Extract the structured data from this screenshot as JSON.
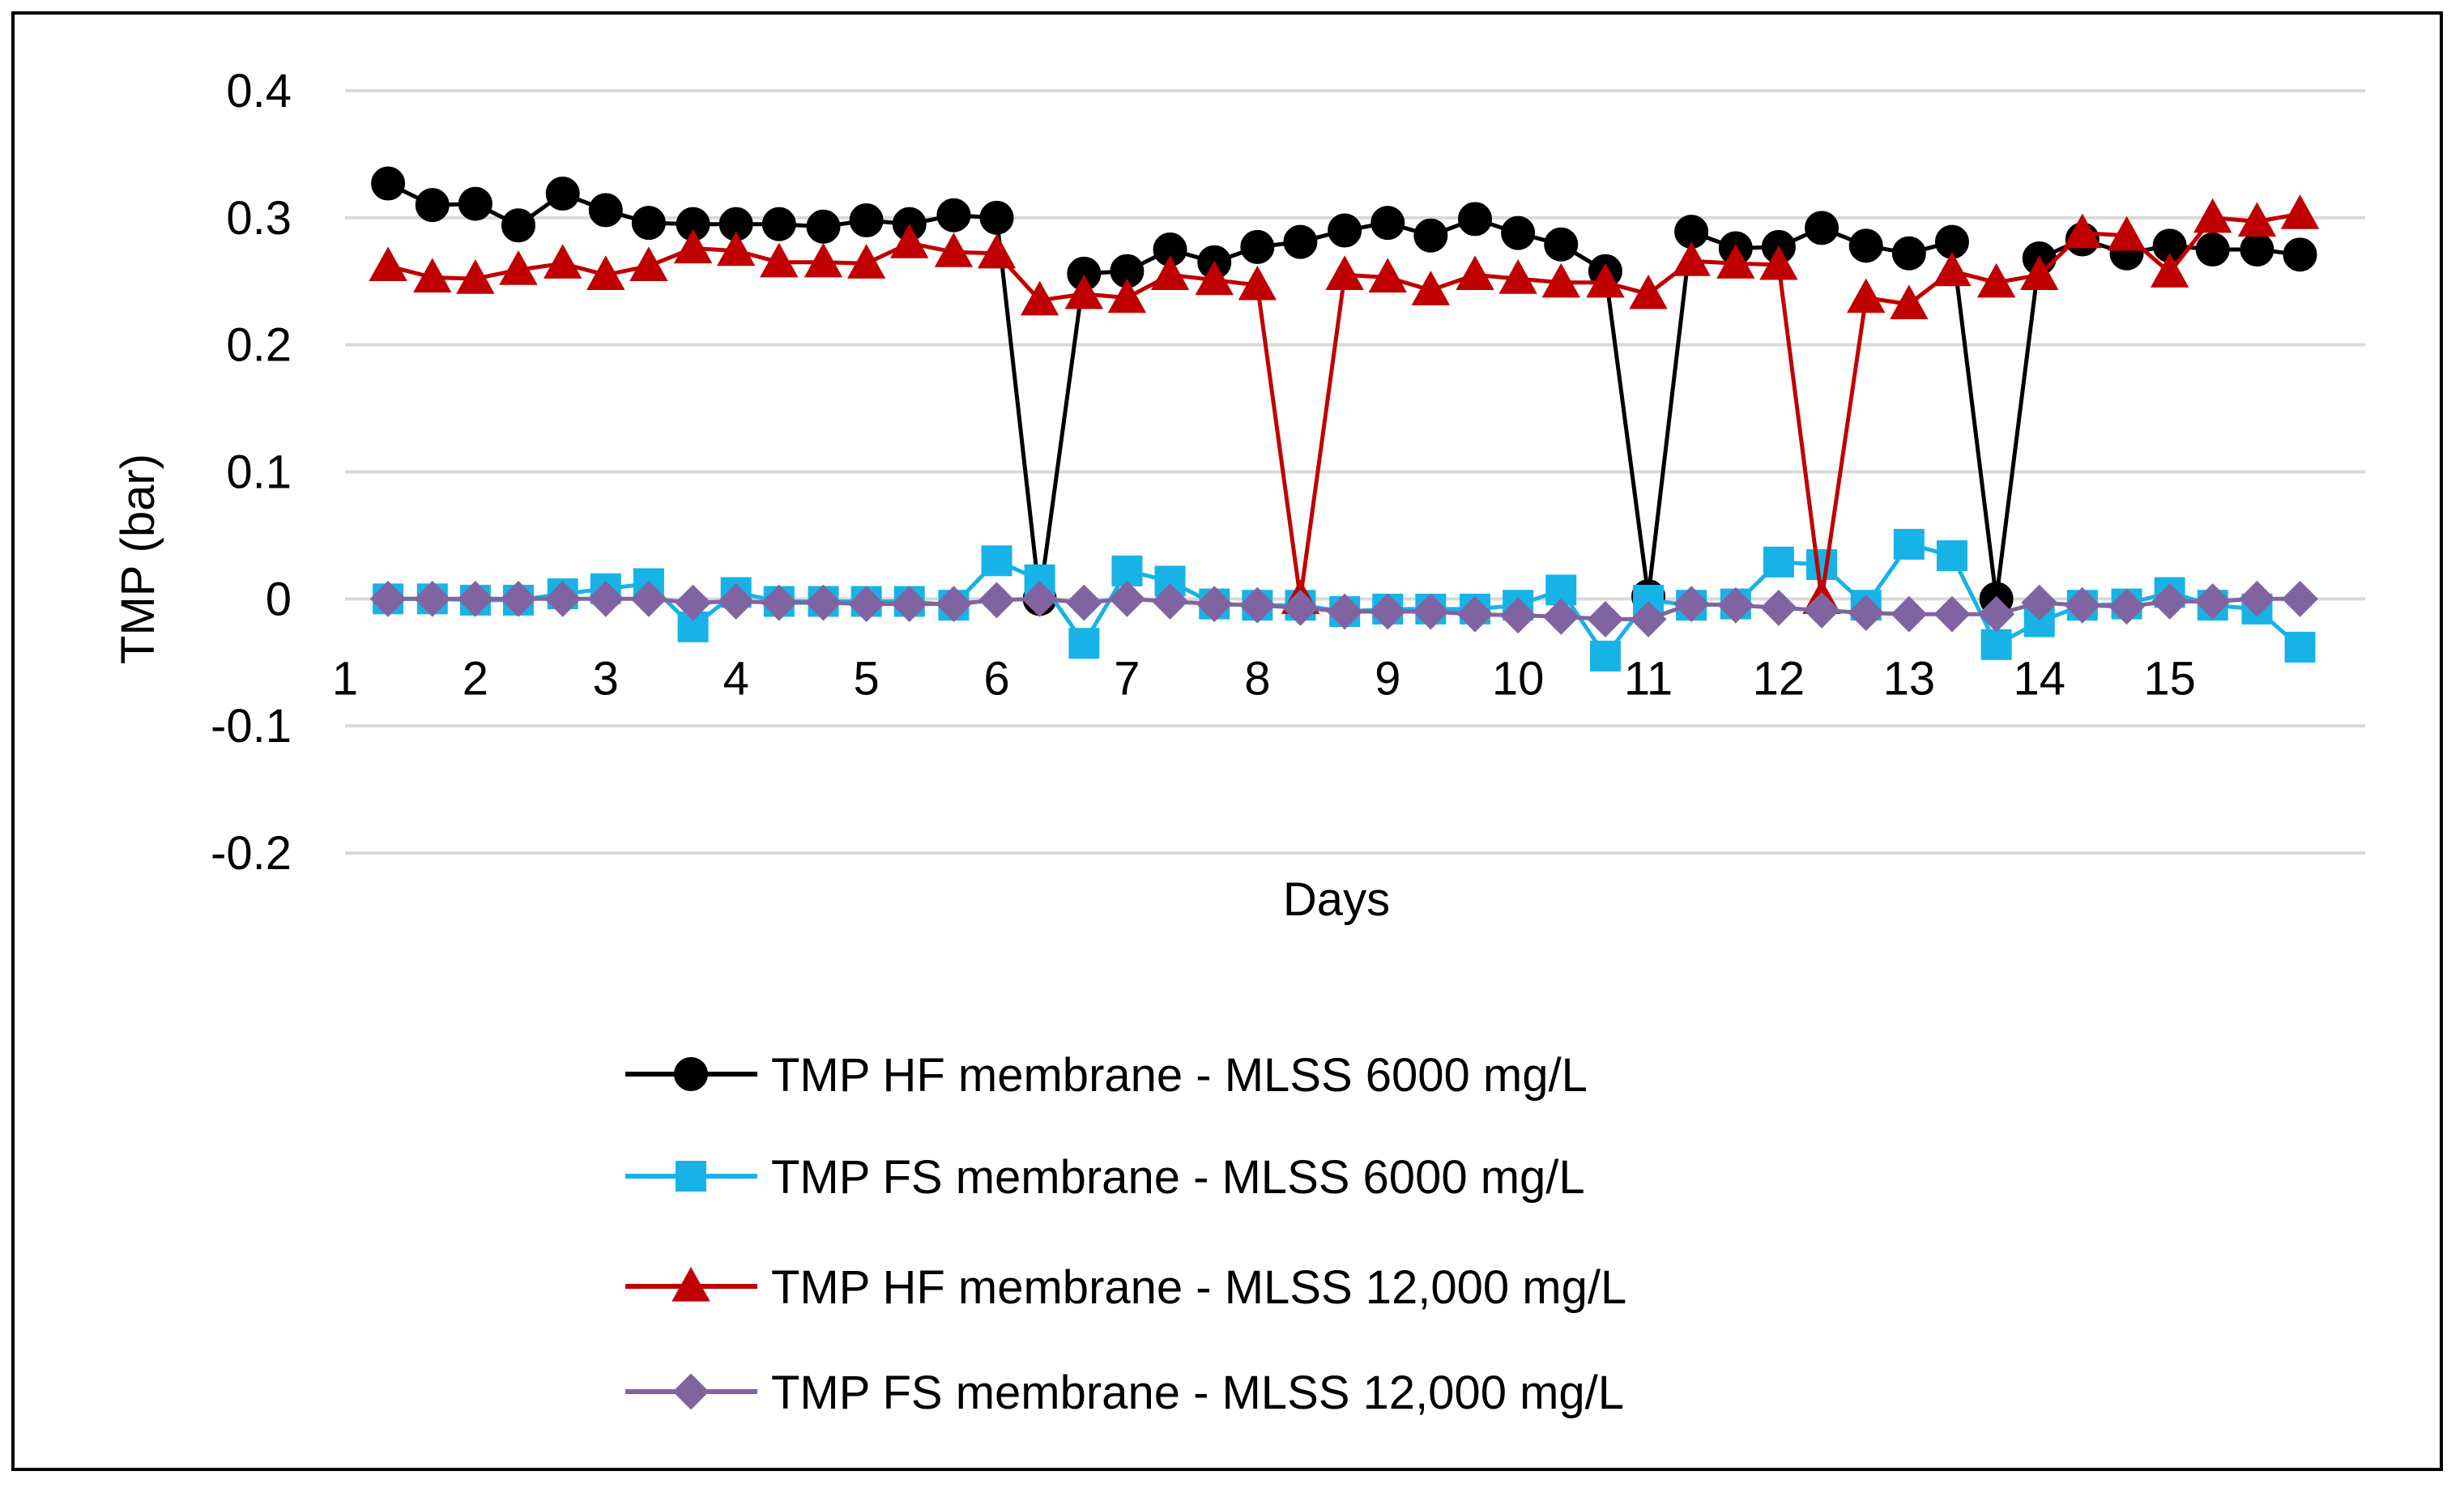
{
  "chart_data": {
    "type": "line",
    "title": "",
    "xlabel": "Days",
    "ylabel": "TMP (bar)",
    "ylim": [
      -0.2,
      0.4
    ],
    "yticks": [
      "-0.2",
      "-0.1",
      "0",
      "0.1",
      "0.2",
      "0.3",
      "0.4"
    ],
    "ytick_values": [
      -0.2,
      -0.1,
      0,
      0.1,
      0.2,
      0.3,
      0.4
    ],
    "xticks": [
      "1",
      "2",
      "3",
      "4",
      "5",
      "6",
      "7",
      "8",
      "9",
      "10",
      "11",
      "12",
      "13",
      "14",
      "15"
    ],
    "xlim": [
      1,
      16.5
    ],
    "grid": true,
    "legend_position": "bottom",
    "series": [
      {
        "name": "TMP HF membrane - MLSS 6000 mg/L",
        "color": "#000000",
        "marker": "circle",
        "x": [
          1.33,
          1.67,
          2,
          2.33,
          2.67,
          3,
          3.33,
          3.67,
          4,
          4.33,
          4.67,
          5,
          5.33,
          5.67,
          6,
          6.33,
          6.67,
          7,
          7.33,
          7.67,
          8,
          8.33,
          8.67,
          9,
          9.33,
          9.67,
          10,
          10.33,
          10.67,
          11,
          11.33,
          11.67,
          12,
          12.33,
          12.67,
          13,
          13.33,
          13.67,
          14,
          14.33,
          14.67,
          15,
          15.33,
          15.67,
          16
        ],
        "y": [
          0.327,
          0.31,
          0.311,
          0.294,
          0.319,
          0.306,
          0.296,
          0.295,
          0.295,
          0.295,
          0.293,
          0.298,
          0.295,
          0.302,
          0.3,
          0.0,
          0.256,
          0.258,
          0.275,
          0.265,
          0.277,
          0.281,
          0.29,
          0.296,
          0.286,
          0.299,
          0.288,
          0.279,
          0.258,
          0.002,
          0.289,
          0.276,
          0.277,
          0.292,
          0.278,
          0.272,
          0.281,
          0.0,
          0.268,
          0.283,
          0.272,
          0.278,
          0.275,
          0.275,
          0.271
        ]
      },
      {
        "name": "TMP FS membrane - MLSS 6000 mg/L",
        "color": "#17b3e6",
        "marker": "square",
        "x": [
          1.33,
          1.67,
          2,
          2.33,
          2.67,
          3,
          3.33,
          3.67,
          4,
          4.33,
          4.67,
          5,
          5.33,
          5.67,
          6,
          6.33,
          6.67,
          7,
          7.33,
          7.67,
          8,
          8.33,
          8.67,
          9,
          9.33,
          9.67,
          10,
          10.33,
          10.67,
          11,
          11.33,
          11.67,
          12,
          12.33,
          12.67,
          13,
          13.33,
          13.67,
          14,
          14.33,
          14.67,
          15,
          15.33,
          15.67,
          16
        ],
        "y": [
          0.0,
          0.0,
          -0.001,
          -0.001,
          0.004,
          0.008,
          0.012,
          -0.022,
          0.005,
          -0.002,
          -0.002,
          -0.002,
          -0.002,
          -0.005,
          0.03,
          0.015,
          -0.035,
          0.022,
          0.014,
          -0.004,
          -0.005,
          -0.005,
          -0.01,
          -0.008,
          -0.008,
          -0.008,
          -0.005,
          0.007,
          -0.045,
          -0.001,
          -0.005,
          -0.004,
          0.029,
          0.027,
          -0.005,
          0.043,
          0.034,
          -0.036,
          -0.018,
          -0.005,
          -0.004,
          0.005,
          -0.005,
          -0.008,
          -0.038
        ]
      },
      {
        "name": "TMP HF membrane - MLSS 12,000 mg/L",
        "color": "#c00000",
        "marker": "triangle",
        "x": [
          1.33,
          1.67,
          2,
          2.33,
          2.67,
          3,
          3.33,
          3.67,
          4,
          4.33,
          4.67,
          5,
          5.33,
          5.67,
          6,
          6.33,
          6.67,
          7,
          7.33,
          7.67,
          8,
          8.33,
          8.67,
          9,
          9.33,
          9.67,
          10,
          10.33,
          10.67,
          11,
          11.33,
          11.67,
          12,
          12.33,
          12.67,
          13,
          13.33,
          13.67,
          14,
          14.33,
          14.67,
          15,
          15.33,
          15.67,
          16
        ],
        "y": [
          0.262,
          0.253,
          0.252,
          0.259,
          0.264,
          0.255,
          0.262,
          0.276,
          0.274,
          0.265,
          0.265,
          0.264,
          0.28,
          0.273,
          0.272,
          0.235,
          0.24,
          0.237,
          0.255,
          0.251,
          0.247,
          0.0,
          0.255,
          0.253,
          0.243,
          0.255,
          0.252,
          0.249,
          0.249,
          0.24,
          0.266,
          0.264,
          0.263,
          0.0,
          0.237,
          0.232,
          0.258,
          0.249,
          0.255,
          0.288,
          0.286,
          0.257,
          0.3,
          0.297,
          0.303
        ]
      },
      {
        "name": "TMP FS membrane - MLSS 12,000 mg/L",
        "color": "#8064a2",
        "marker": "diamond",
        "x": [
          1.33,
          1.67,
          2,
          2.33,
          2.67,
          3,
          3.33,
          3.67,
          4,
          4.33,
          4.67,
          5,
          5.33,
          5.67,
          6,
          6.33,
          6.67,
          7,
          7.33,
          7.67,
          8,
          8.33,
          8.67,
          9,
          9.33,
          9.67,
          10,
          10.33,
          10.67,
          11,
          11.33,
          11.67,
          12,
          12.33,
          12.67,
          13,
          13.33,
          13.67,
          14,
          14.33,
          14.67,
          15,
          15.33,
          15.67,
          16
        ],
        "y": [
          0.0,
          0.0,
          0.0,
          0.0,
          0.0,
          0.0,
          0.0,
          -0.003,
          -0.002,
          -0.003,
          -0.003,
          -0.004,
          -0.004,
          -0.004,
          -0.001,
          0.0,
          -0.003,
          0.0,
          -0.002,
          -0.004,
          -0.005,
          -0.007,
          -0.01,
          -0.01,
          -0.01,
          -0.012,
          -0.013,
          -0.014,
          -0.016,
          -0.016,
          -0.004,
          -0.005,
          -0.007,
          -0.009,
          -0.011,
          -0.012,
          -0.012,
          -0.012,
          -0.003,
          -0.005,
          -0.006,
          -0.002,
          -0.002,
          0.0,
          0.0
        ]
      }
    ]
  }
}
